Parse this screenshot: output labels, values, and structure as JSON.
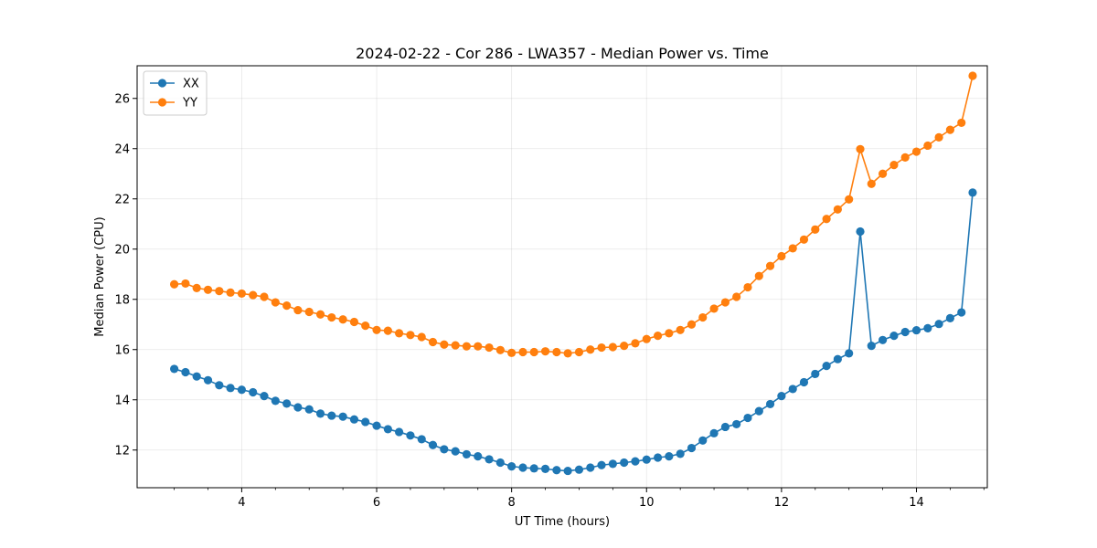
{
  "chart_data": {
    "type": "line",
    "title": "2024-02-22 - Cor 286 - LWA357 - Median Power vs. Time",
    "xlabel": "UT Time (hours)",
    "ylabel": "Median Power (CPU)",
    "xlim": [
      2.45,
      15.05
    ],
    "ylim": [
      10.5,
      27.3
    ],
    "xticks": [
      4,
      6,
      8,
      10,
      12,
      14
    ],
    "xtick_labels": [
      "4",
      "6",
      "8",
      "10",
      "12",
      "14"
    ],
    "yticks": [
      12,
      14,
      16,
      18,
      20,
      22,
      24,
      26
    ],
    "ytick_labels": [
      "12",
      "14",
      "16",
      "18",
      "20",
      "22",
      "24",
      "26"
    ],
    "grid": true,
    "legend_position": "top-left",
    "x": [
      3.0,
      3.167,
      3.333,
      3.5,
      3.667,
      3.833,
      4.0,
      4.167,
      4.333,
      4.5,
      4.667,
      4.833,
      5.0,
      5.167,
      5.333,
      5.5,
      5.667,
      5.833,
      6.0,
      6.167,
      6.333,
      6.5,
      6.667,
      6.833,
      7.0,
      7.167,
      7.333,
      7.5,
      7.667,
      7.833,
      8.0,
      8.167,
      8.333,
      8.5,
      8.667,
      8.833,
      9.0,
      9.167,
      9.333,
      9.5,
      9.667,
      9.833,
      10.0,
      10.167,
      10.333,
      10.5,
      10.667,
      10.833,
      11.0,
      11.167,
      11.333,
      11.5,
      11.667,
      11.833,
      12.0,
      12.167,
      12.333,
      12.5,
      12.667,
      12.833,
      13.0,
      13.167,
      13.333,
      13.5,
      13.667,
      13.833,
      14.0,
      14.167,
      14.333,
      14.5,
      14.667,
      14.833
    ],
    "series": [
      {
        "name": "XX",
        "color": "#1f77b4",
        "values": [
          15.23,
          15.1,
          14.93,
          14.78,
          14.58,
          14.47,
          14.4,
          14.3,
          14.15,
          13.96,
          13.85,
          13.7,
          13.62,
          13.45,
          13.37,
          13.33,
          13.22,
          13.12,
          12.97,
          12.83,
          12.72,
          12.58,
          12.43,
          12.2,
          12.03,
          11.95,
          11.83,
          11.75,
          11.63,
          11.5,
          11.35,
          11.3,
          11.27,
          11.25,
          11.2,
          11.17,
          11.22,
          11.3,
          11.4,
          11.45,
          11.5,
          11.55,
          11.62,
          11.7,
          11.75,
          11.85,
          12.08,
          12.38,
          12.67,
          12.92,
          13.03,
          13.28,
          13.55,
          13.83,
          14.15,
          14.43,
          14.7,
          15.03,
          15.35,
          15.62,
          15.85,
          20.7,
          16.15,
          16.38,
          16.55,
          16.7,
          16.77,
          16.85,
          17.02,
          17.25,
          17.48,
          22.25
        ]
      },
      {
        "name": "YY",
        "color": "#ff7f0e",
        "values": [
          18.6,
          18.63,
          18.45,
          18.38,
          18.33,
          18.27,
          18.23,
          18.17,
          18.1,
          17.88,
          17.75,
          17.57,
          17.5,
          17.4,
          17.28,
          17.2,
          17.1,
          16.95,
          16.78,
          16.75,
          16.65,
          16.58,
          16.5,
          16.3,
          16.2,
          16.17,
          16.13,
          16.13,
          16.08,
          15.98,
          15.87,
          15.9,
          15.9,
          15.93,
          15.9,
          15.85,
          15.9,
          16.0,
          16.08,
          16.1,
          16.15,
          16.25,
          16.42,
          16.55,
          16.65,
          16.78,
          17.0,
          17.28,
          17.63,
          17.88,
          18.1,
          18.48,
          18.93,
          19.33,
          19.72,
          20.03,
          20.38,
          20.78,
          21.2,
          21.58,
          21.98,
          23.98,
          22.6,
          23.0,
          23.35,
          23.65,
          23.88,
          24.12,
          24.45,
          24.75,
          25.03,
          26.9
        ]
      }
    ]
  }
}
